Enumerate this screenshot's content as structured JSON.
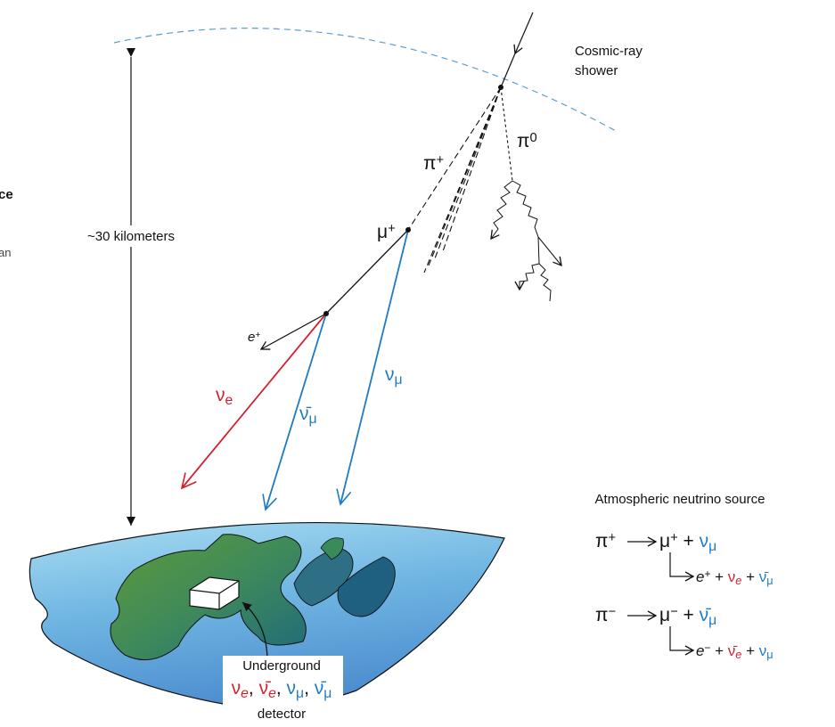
{
  "labels": {
    "shower": [
      "Cosmic-ray",
      "shower"
    ],
    "distance": "~30 kilometers",
    "pi_plus": {
      "base": "π",
      "sup": "+"
    },
    "pi_zero": {
      "base": "π",
      "sup": "0"
    },
    "mu_plus": {
      "base": "μ",
      "sup": "+"
    },
    "e_plus": {
      "base": "e",
      "sup": "+",
      "italic": true
    },
    "nu_e": {
      "base": "ν",
      "sub": "e",
      "color": "#d3202f"
    },
    "nubar_mu": {
      "base": "ν̄",
      "sub": "μ",
      "color": "#1f7bc1"
    },
    "nu_mu": {
      "base": "ν",
      "sub": "μ",
      "color": "#1f7bc1"
    }
  },
  "margin_fragments": [
    "ce",
    "an"
  ],
  "source": {
    "title": "Atmospheric neutrino source",
    "reactions": [
      {
        "parent": [
          {
            "base": "π",
            "sup": "+"
          }
        ],
        "products": [
          {
            "base": "μ",
            "sup": "+"
          },
          " + ",
          {
            "base": "ν",
            "sub": "μ",
            "color": "#1f7bc1"
          }
        ],
        "decay": [
          {
            "base": "e",
            "sup": "+",
            "italic": true
          },
          " + ",
          {
            "base": "ν",
            "sub": "e",
            "color": "#d3202f",
            "italic_sub": true
          },
          " + ",
          {
            "base": "ν̄",
            "sub": "μ",
            "color": "#1f7bc1"
          }
        ]
      },
      {
        "parent": [
          {
            "base": "π",
            "sup": "−"
          }
        ],
        "products": [
          {
            "base": "μ",
            "sup": "−"
          },
          " + ",
          {
            "base": "ν̄",
            "sub": "μ",
            "color": "#1f7bc1"
          }
        ],
        "decay": [
          {
            "base": "e",
            "sup": "−",
            "italic": true
          },
          " + ",
          {
            "base": "ν̄",
            "sub": "e",
            "color": "#d3202f",
            "italic_sub": true
          },
          " + ",
          {
            "base": "ν",
            "sub": "μ",
            "color": "#1f7bc1"
          }
        ]
      }
    ]
  },
  "detector": {
    "title": "Underground",
    "particles": [
      {
        "base": "ν",
        "sub": "e",
        "color": "#d3202f",
        "italic_sub": true
      },
      ", ",
      {
        "base": "ν̄",
        "sub": "e",
        "color": "#d3202f",
        "italic_sub": true
      },
      ", ",
      {
        "base": "ν",
        "sub": "μ",
        "color": "#1f7bc1"
      },
      ", ",
      {
        "base": "ν̄",
        "sub": "μ",
        "color": "#1f7bc1"
      }
    ],
    "caption": "detector"
  }
}
